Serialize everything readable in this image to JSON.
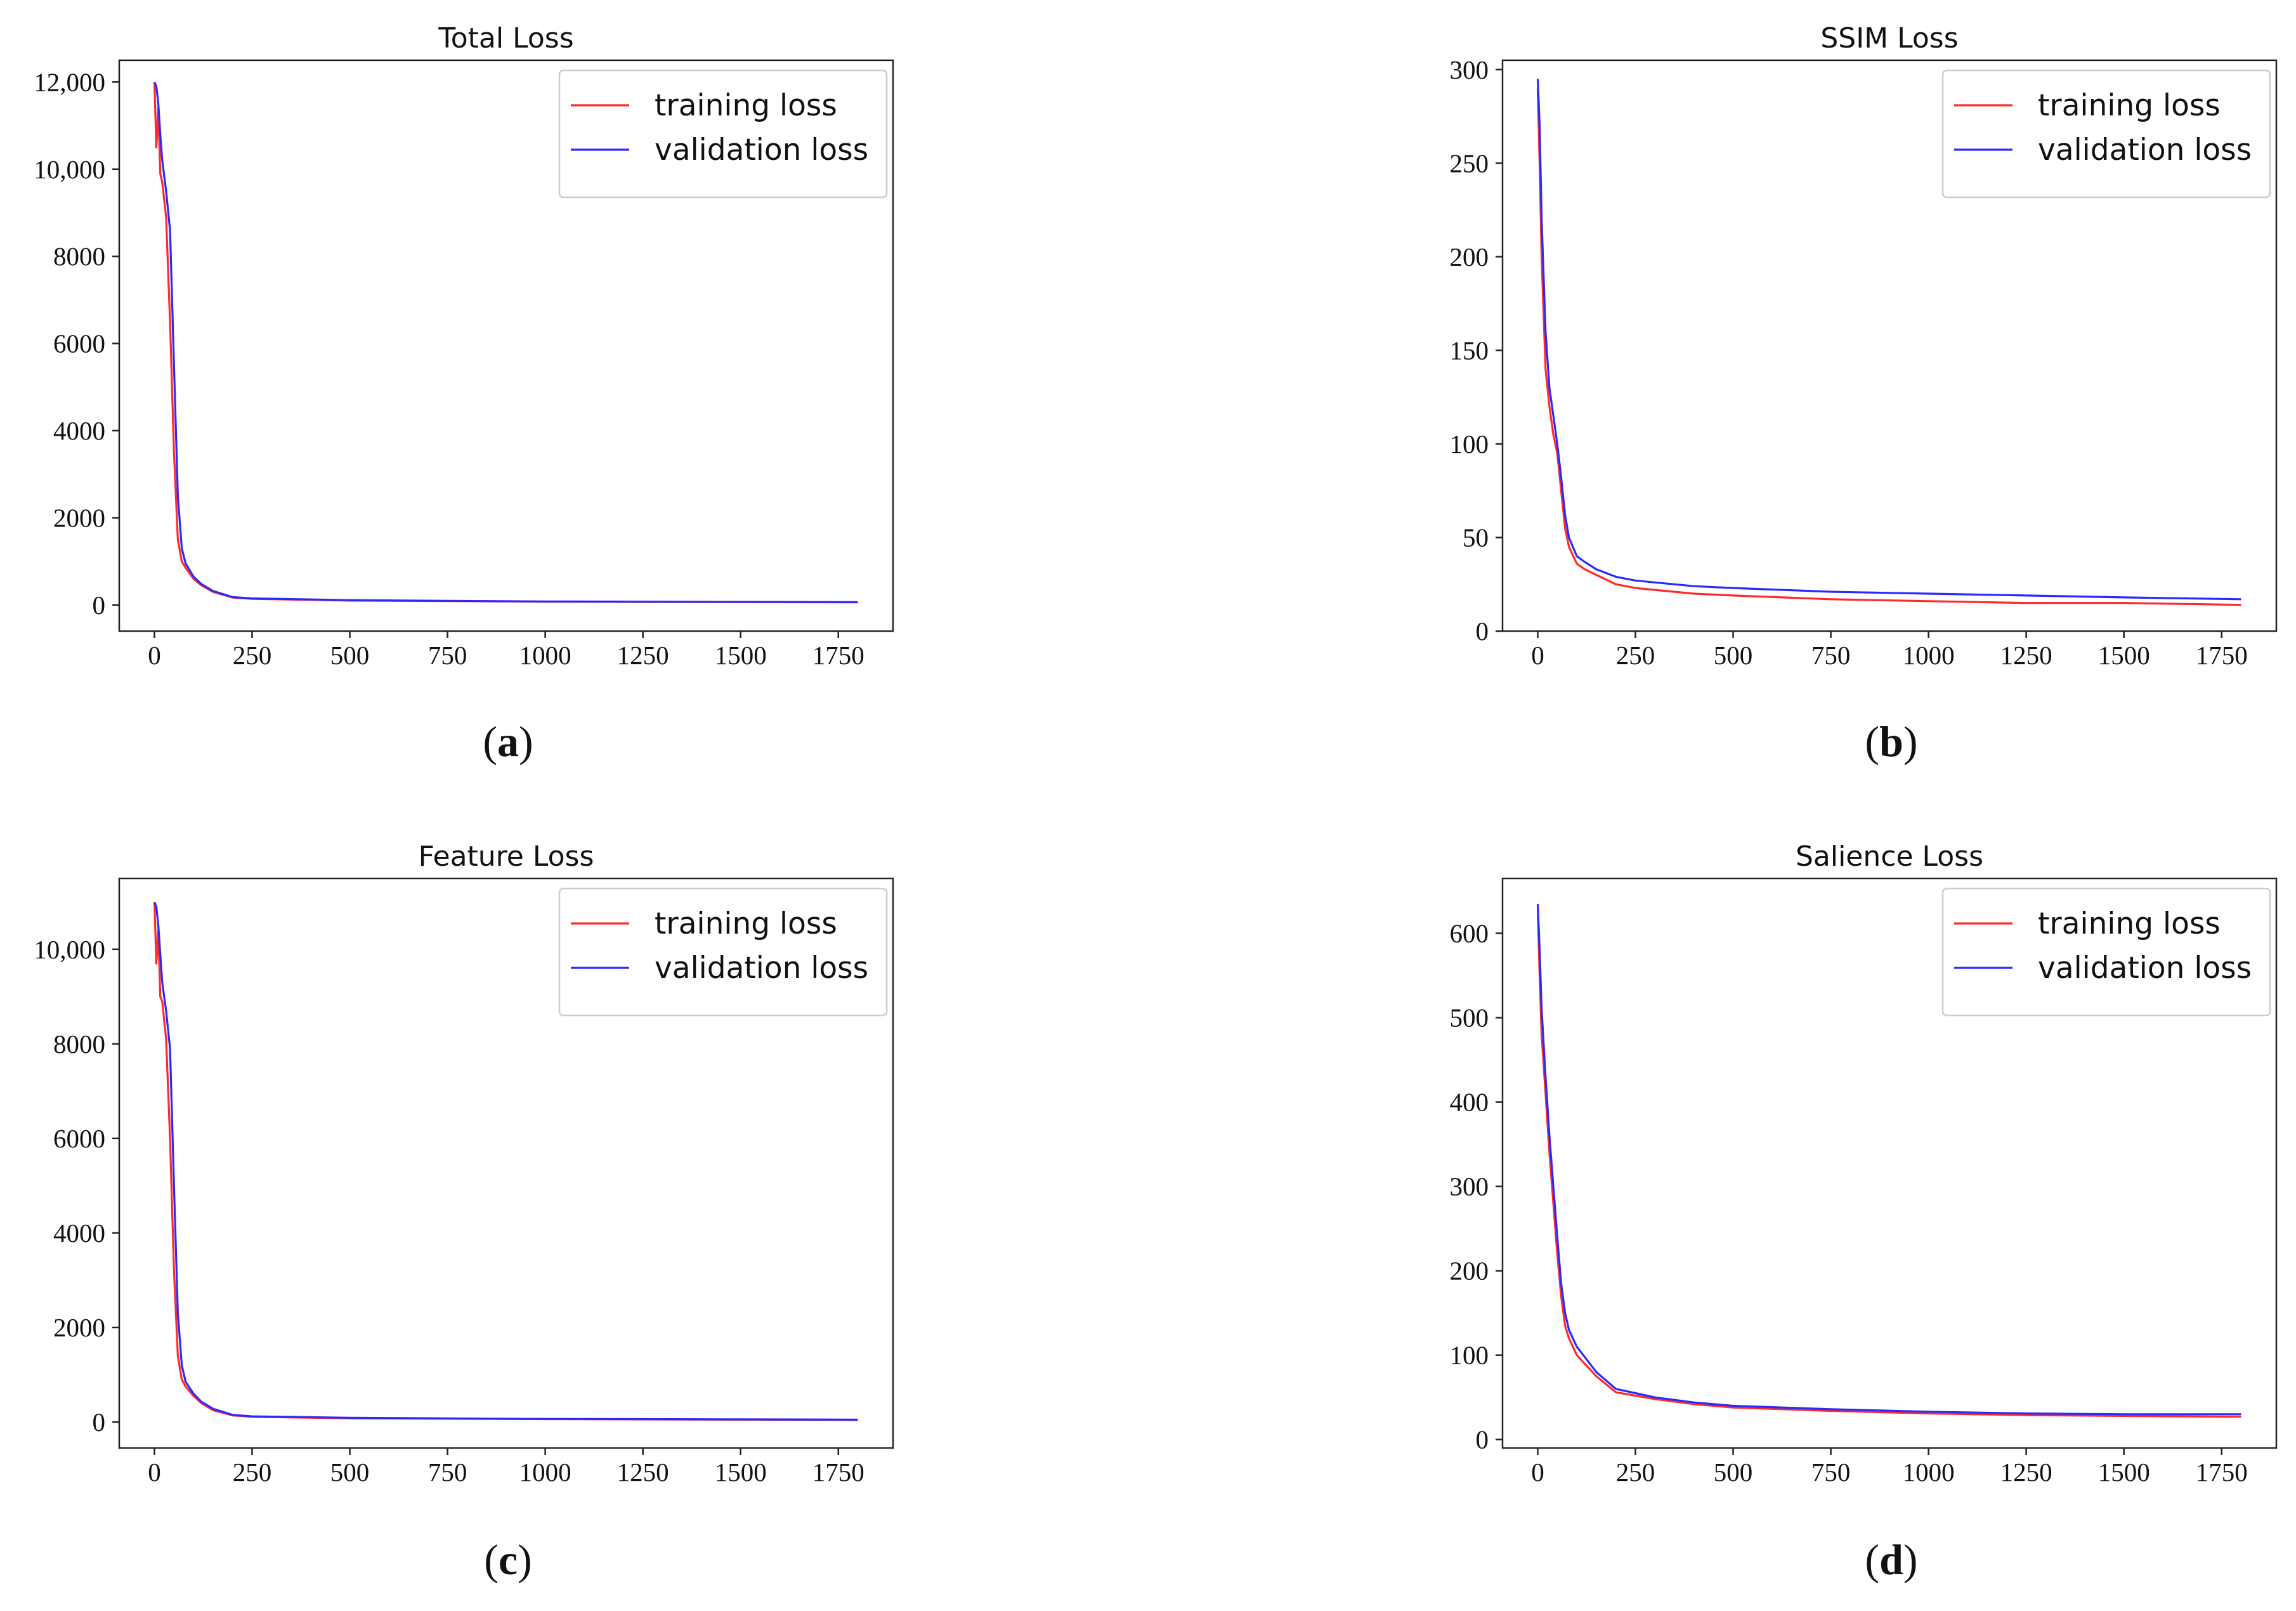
{
  "chart_data": [
    {
      "type": "line",
      "panel_label": "a",
      "title": "Total Loss",
      "xlabel": "",
      "ylabel": "",
      "xlim": [
        -90,
        1890
      ],
      "ylim": [
        -600,
        12500
      ],
      "xticks": [
        0,
        250,
        500,
        750,
        1000,
        1250,
        1500,
        1750
      ],
      "xtick_labels": [
        "0",
        "250",
        "500",
        "750",
        "1000",
        "1250",
        "1500",
        "1750"
      ],
      "yticks": [
        0,
        2000,
        4000,
        6000,
        8000,
        10000,
        12000
      ],
      "ytick_labels": [
        "0",
        "2000",
        "4000",
        "6000",
        "8000",
        "10,000",
        "12,000"
      ],
      "legend_position": "top-right",
      "series": [
        {
          "name": "training loss",
          "color": "#ff2a2a",
          "x": [
            0,
            5,
            10,
            15,
            20,
            30,
            40,
            50,
            60,
            70,
            80,
            100,
            120,
            150,
            200,
            250,
            500,
            750,
            1000,
            1250,
            1500,
            1800
          ],
          "y": [
            12000,
            10500,
            11400,
            9900,
            9700,
            8900,
            6500,
            3500,
            1500,
            1000,
            850,
            600,
            450,
            300,
            170,
            140,
            100,
            90,
            75,
            70,
            65,
            60
          ]
        },
        {
          "name": "validation loss",
          "color": "#2a2aff",
          "x": [
            0,
            5,
            10,
            15,
            20,
            30,
            40,
            50,
            60,
            70,
            80,
            100,
            120,
            150,
            200,
            250,
            500,
            750,
            1000,
            1250,
            1500,
            1800
          ],
          "y": [
            12000,
            11900,
            11500,
            10800,
            10200,
            9500,
            8600,
            5500,
            2500,
            1300,
            950,
            650,
            480,
            320,
            180,
            150,
            110,
            95,
            80,
            75,
            70,
            65
          ]
        }
      ]
    },
    {
      "type": "line",
      "panel_label": "b",
      "title": "SSIM Loss",
      "xlabel": "",
      "ylabel": "",
      "xlim": [
        -90,
        1890
      ],
      "ylim": [
        0,
        305
      ],
      "xticks": [
        0,
        250,
        500,
        750,
        1000,
        1250,
        1500,
        1750
      ],
      "xtick_labels": [
        "0",
        "250",
        "500",
        "750",
        "1000",
        "1250",
        "1500",
        "1750"
      ],
      "yticks": [
        0,
        50,
        100,
        150,
        200,
        250,
        300
      ],
      "ytick_labels": [
        "0",
        "50",
        "100",
        "150",
        "200",
        "250",
        "300"
      ],
      "legend_position": "top-right",
      "series": [
        {
          "name": "training loss",
          "color": "#ff2a2a",
          "x": [
            0,
            5,
            10,
            20,
            30,
            40,
            50,
            60,
            70,
            80,
            100,
            120,
            150,
            200,
            250,
            300,
            400,
            500,
            750,
            1000,
            1250,
            1500,
            1800
          ],
          "y": [
            290,
            250,
            200,
            140,
            120,
            105,
            95,
            75,
            55,
            45,
            36,
            33,
            30,
            25,
            23,
            22,
            20,
            19,
            17,
            16,
            15,
            15,
            14
          ]
        },
        {
          "name": "validation loss",
          "color": "#2a2aff",
          "x": [
            0,
            5,
            10,
            20,
            30,
            40,
            50,
            60,
            70,
            80,
            100,
            120,
            150,
            200,
            250,
            300,
            400,
            500,
            750,
            1000,
            1250,
            1500,
            1800
          ],
          "y": [
            295,
            270,
            220,
            160,
            130,
            115,
            100,
            82,
            62,
            50,
            40,
            37,
            33,
            29,
            27,
            26,
            24,
            23,
            21,
            20,
            19,
            18,
            17
          ]
        }
      ]
    },
    {
      "type": "line",
      "panel_label": "c",
      "title": "Feature Loss",
      "xlabel": "",
      "ylabel": "",
      "xlim": [
        -90,
        1890
      ],
      "ylim": [
        -550,
        11500
      ],
      "xticks": [
        0,
        250,
        500,
        750,
        1000,
        1250,
        1500,
        1750
      ],
      "xtick_labels": [
        "0",
        "250",
        "500",
        "750",
        "1000",
        "1250",
        "1500",
        "1750"
      ],
      "yticks": [
        0,
        2000,
        4000,
        6000,
        8000,
        10000
      ],
      "ytick_labels": [
        "0",
        "2000",
        "4000",
        "6000",
        "8000",
        "10,000"
      ],
      "legend_position": "top-right",
      "series": [
        {
          "name": "training loss",
          "color": "#ff2a2a",
          "x": [
            0,
            5,
            10,
            15,
            20,
            30,
            40,
            50,
            60,
            70,
            80,
            100,
            120,
            150,
            200,
            250,
            500,
            750,
            1000,
            1250,
            1500,
            1800
          ],
          "y": [
            11000,
            9700,
            10400,
            9000,
            8900,
            8100,
            6000,
            3200,
            1400,
            900,
            750,
            550,
            400,
            250,
            140,
            110,
            80,
            70,
            60,
            55,
            50,
            45
          ]
        },
        {
          "name": "validation loss",
          "color": "#2a2aff",
          "x": [
            0,
            5,
            10,
            15,
            20,
            30,
            40,
            50,
            60,
            70,
            80,
            100,
            120,
            150,
            200,
            250,
            500,
            750,
            1000,
            1250,
            1500,
            1800
          ],
          "y": [
            11000,
            10900,
            10500,
            9900,
            9300,
            8700,
            7900,
            5000,
            2300,
            1200,
            850,
            600,
            430,
            280,
            150,
            120,
            90,
            75,
            65,
            60,
            55,
            50
          ]
        }
      ]
    },
    {
      "type": "line",
      "panel_label": "d",
      "title": "Salience Loss",
      "xlabel": "",
      "ylabel": "",
      "xlim": [
        -90,
        1890
      ],
      "ylim": [
        -10,
        665
      ],
      "xticks": [
        0,
        250,
        500,
        750,
        1000,
        1250,
        1500,
        1750
      ],
      "xtick_labels": [
        "0",
        "250",
        "500",
        "750",
        "1000",
        "1250",
        "1500",
        "1750"
      ],
      "yticks": [
        0,
        100,
        200,
        300,
        400,
        500,
        600
      ],
      "ytick_labels": [
        "0",
        "100",
        "200",
        "300",
        "400",
        "500",
        "600"
      ],
      "legend_position": "top-right",
      "series": [
        {
          "name": "training loss",
          "color": "#ff2a2a",
          "x": [
            0,
            5,
            10,
            20,
            30,
            40,
            50,
            60,
            70,
            80,
            100,
            120,
            150,
            200,
            250,
            300,
            400,
            500,
            750,
            1000,
            1250,
            1500,
            1800
          ],
          "y": [
            630,
            550,
            480,
            410,
            340,
            280,
            220,
            170,
            135,
            120,
            100,
            90,
            75,
            56,
            52,
            48,
            42,
            38,
            34,
            31,
            29,
            28,
            27
          ]
        },
        {
          "name": "validation loss",
          "color": "#2a2aff",
          "x": [
            0,
            5,
            10,
            20,
            30,
            40,
            50,
            60,
            70,
            80,
            100,
            120,
            150,
            200,
            250,
            300,
            400,
            500,
            750,
            1000,
            1250,
            1500,
            1800
          ],
          "y": [
            635,
            580,
            510,
            430,
            360,
            300,
            240,
            185,
            150,
            130,
            110,
            98,
            80,
            60,
            55,
            50,
            44,
            40,
            36,
            33,
            31,
            30,
            30
          ]
        }
      ]
    }
  ]
}
